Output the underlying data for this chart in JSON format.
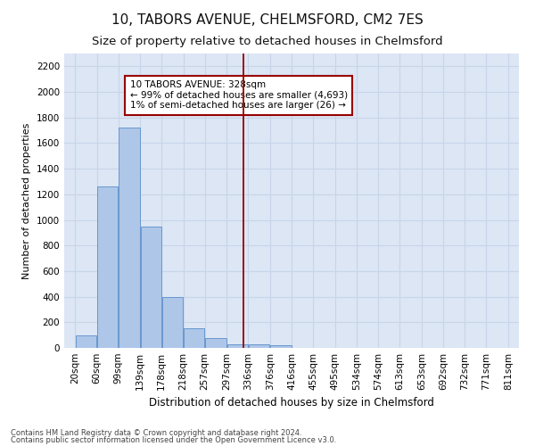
{
  "title": "10, TABORS AVENUE, CHELMSFORD, CM2 7ES",
  "subtitle": "Size of property relative to detached houses in Chelmsford",
  "xlabel": "Distribution of detached houses by size in Chelmsford",
  "ylabel": "Number of detached properties",
  "footnote1": "Contains HM Land Registry data © Crown copyright and database right 2024.",
  "footnote2": "Contains public sector information licensed under the Open Government Licence v3.0.",
  "bins": [
    20,
    60,
    99,
    139,
    178,
    218,
    257,
    297,
    336,
    376,
    416,
    455,
    495,
    534,
    574,
    613,
    653,
    692,
    732,
    771,
    811
  ],
  "values": [
    100,
    1260,
    1720,
    950,
    400,
    150,
    75,
    30,
    25,
    20,
    0,
    0,
    0,
    0,
    0,
    0,
    0,
    0,
    0,
    0
  ],
  "bar_color": "#aec6e8",
  "bar_edgecolor": "#5b8fc9",
  "vline_x": 328,
  "vline_color": "#990000",
  "annotation_text": "10 TABORS AVENUE: 328sqm\n← 99% of detached houses are smaller (4,693)\n1% of semi-detached houses are larger (26) →",
  "annotation_box_color": "#ffffff",
  "annotation_box_edgecolor": "#990000",
  "ylim": [
    0,
    2300
  ],
  "yticks": [
    0,
    200,
    400,
    600,
    800,
    1000,
    1200,
    1400,
    1600,
    1800,
    2000,
    2200
  ],
  "grid_color": "#c8d4e8",
  "background_color": "#dce6f5",
  "title_fontsize": 11,
  "subtitle_fontsize": 9.5,
  "tick_labelsize": 7.5,
  "ylabel_fontsize": 8,
  "xlabel_fontsize": 8.5,
  "footnote_fontsize": 6
}
